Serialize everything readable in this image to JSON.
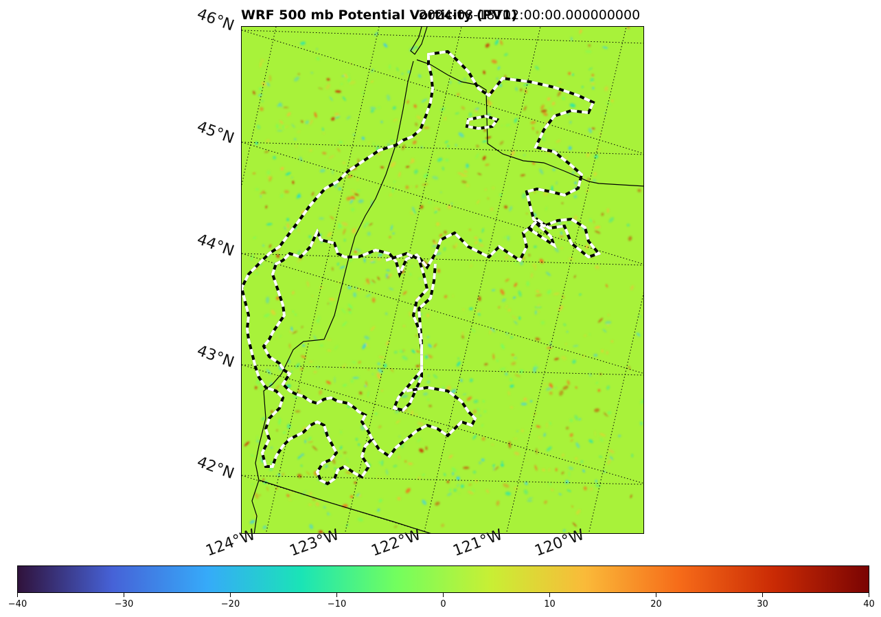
{
  "title": {
    "main": "WRF 500 mb Potential Vorticity (PV1)",
    "timestamp": "2024-08-18T02:00:00.000000000"
  },
  "map": {
    "lat_labels": [
      "46°N",
      "45°N",
      "44°N",
      "43°N",
      "42°N"
    ],
    "lon_labels": [
      "124°W",
      "123°W",
      "122°W",
      "121°W",
      "120°W"
    ],
    "background_color": "#a8f23a",
    "gridline_style": "dotted",
    "fire_perimeter_style": "black-white dashed"
  },
  "colorbar": {
    "min": -40,
    "max": 40,
    "tick_labels": [
      "−40",
      "−30",
      "−20",
      "−10",
      "0",
      "10",
      "20",
      "30",
      "40"
    ],
    "colormap": "turbo",
    "colors": [
      "#30123b",
      "#4662d7",
      "#36aaf9",
      "#1ae4b6",
      "#72fe5e",
      "#c8ef34",
      "#faba39",
      "#f66b19",
      "#ca2a04",
      "#7a0403"
    ]
  }
}
